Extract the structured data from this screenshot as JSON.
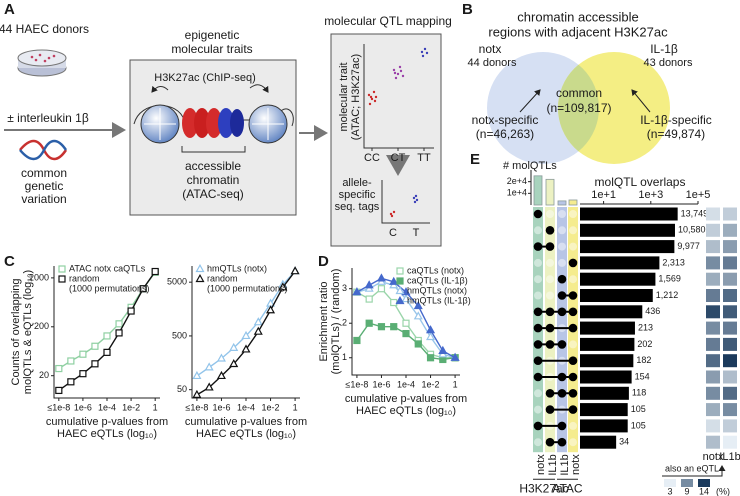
{
  "panel_labels": [
    "A",
    "B",
    "C",
    "D",
    "E"
  ],
  "panel_a": {
    "donors": "44 HAEC donors",
    "treatment": "± interleukin 1β",
    "variation": [
      "common",
      "genetic",
      "variation"
    ],
    "traits_title": [
      "epigenetic",
      "molecular traits"
    ],
    "h3k27ac": "H3K27ac (ChIP-seq)",
    "accessible": [
      "accessible",
      "chromatin",
      "(ATAC-seq)"
    ],
    "qtl_title": "molecular QTL mapping",
    "trait_axis": [
      "molecular trait",
      "(ATAC; H3K27ac)"
    ],
    "genotypes": [
      "CC",
      "CT",
      "TT"
    ],
    "allele_axis": [
      "allele-",
      "specific",
      "seq. tags"
    ],
    "alleles": [
      "C",
      "T"
    ]
  },
  "panel_b": {
    "title": [
      "chromatin accessible",
      "regions with adjacent H3K27ac"
    ],
    "left": "notx",
    "left_donors": "44 donors",
    "right": "IL-1β",
    "right_donors": "43 donors",
    "common": "common",
    "common_n": "(n=109,817)",
    "left_specific": "notx-specific",
    "left_n": "(n=46,263)",
    "right_specific": "IL-1β-specific",
    "right_n": "(n=49,874)"
  },
  "chart_data": [
    {
      "type": "line",
      "ylabel": [
        "Counts of overlapping",
        "molQTLs & eQTLs (log₁₀)"
      ],
      "xlabel": [
        "cumulative p-values from",
        "HAEC eQTLs (log₁₀)"
      ],
      "x": [
        -8,
        -7,
        -6,
        -5,
        -4,
        -3,
        -2,
        -1,
        0
      ],
      "xlim": [
        -8.4,
        0.4
      ],
      "xticks": [
        {
          "value": -8,
          "label": "≤1e-8"
        },
        {
          "value": -6,
          "label": "1e-6"
        },
        {
          "value": -4,
          "label": "1e-4"
        },
        {
          "value": -2,
          "label": "1e-2"
        },
        {
          "value": 0,
          "label": "1"
        }
      ],
      "yscale": "log",
      "ylim": [
        7,
        3500
      ],
      "yticks": [
        20,
        200,
        2000
      ],
      "legend": "upper left",
      "series": [
        {
          "name": "ATAC notx caQTLs",
          "color": "#8fd0a2",
          "marker": "square-open",
          "values": [
            28,
            40,
            55,
            80,
            130,
            230,
            500,
            1200,
            2600
          ]
        },
        {
          "name": "random",
          "note": "(1000 permutations)",
          "color": "#111111",
          "marker": "square-open",
          "values": [
            10,
            15,
            22,
            35,
            60,
            150,
            420,
            1200,
            2700
          ]
        }
      ]
    },
    {
      "type": "line",
      "xlabel": [
        "cumulative p-values from",
        "HAEC eQTLs (log₁₀)"
      ],
      "x": [
        -8,
        -7,
        -6,
        -5,
        -4,
        -3,
        -2,
        -1,
        0
      ],
      "xlim": [
        -8.4,
        0.4
      ],
      "xticks": [
        {
          "value": -8,
          "label": "≤1e-8"
        },
        {
          "value": -6,
          "label": "1e-6"
        },
        {
          "value": -4,
          "label": "1e-4"
        },
        {
          "value": -2,
          "label": "1e-2"
        },
        {
          "value": 0,
          "label": "1"
        }
      ],
      "yscale": "log",
      "ylim": [
        35,
        10000
      ],
      "yticks": [
        50,
        500,
        5000
      ],
      "legend": "upper left",
      "series": [
        {
          "name": "hmQTLs (notx)",
          "color": "#92c4ea",
          "marker": "triangle-open",
          "values": [
            90,
            130,
            190,
            300,
            500,
            900,
            2000,
            4500,
            8000
          ]
        },
        {
          "name": "random",
          "note": "(1000 permutations)",
          "color": "#111111",
          "marker": "triangle-open",
          "values": [
            40,
            55,
            90,
            150,
            280,
            600,
            1500,
            4000,
            8000
          ]
        }
      ]
    },
    {
      "type": "line",
      "ylabel": [
        "Enrichment ratio",
        "(molQTLs) / (random)"
      ],
      "xlabel": [
        "cumulative p-values from",
        "HAEC eQTLs (log₁₀)"
      ],
      "x": [
        -8,
        -7,
        -6,
        -5,
        -4,
        -3,
        -2,
        -1,
        0
      ],
      "xlim": [
        -8.4,
        0.4
      ],
      "xticks": [
        {
          "value": -8,
          "label": "≤1e-8"
        },
        {
          "value": -6,
          "label": "1e-6"
        },
        {
          "value": -4,
          "label": "1e-4"
        },
        {
          "value": -2,
          "label": "1e-2"
        },
        {
          "value": 0,
          "label": "1"
        }
      ],
      "yscale": "linear",
      "ylim": [
        0.5,
        3.6
      ],
      "yticks": [
        1,
        2,
        3
      ],
      "legend": "upper right",
      "series": [
        {
          "name": "caQTLs (notx)",
          "color": "#9ad5aa",
          "marker": "square-open",
          "values": [
            2.9,
            2.7,
            3.0,
            2.6,
            2.0,
            1.5,
            1.1,
            1.0,
            1.0
          ]
        },
        {
          "name": "caQTLs (IL-1β)",
          "color": "#5aae74",
          "marker": "square-filled",
          "values": [
            1.5,
            2.0,
            1.9,
            1.9,
            1.7,
            1.4,
            1.0,
            0.95,
            1.0
          ]
        },
        {
          "name": "hmQTLs (notx)",
          "color": "#98c5ea",
          "marker": "triangle-open",
          "values": [
            2.9,
            3.0,
            3.2,
            3.1,
            2.7,
            2.2,
            1.6,
            1.1,
            1.0
          ]
        },
        {
          "name": "hmQTLs (IL-1β)",
          "color": "#4569cc",
          "marker": "triangle-filled",
          "values": [
            2.9,
            3.1,
            3.3,
            3.2,
            2.9,
            2.5,
            1.8,
            1.2,
            1.0
          ]
        }
      ]
    },
    {
      "type": "upset",
      "set_size_title": "# molQTLs",
      "title": "molQTL overlaps",
      "sets": [
        {
          "name": "notx",
          "color": "#a8d3bd"
        },
        {
          "name": "IL1b",
          "color": "#ecf1c2"
        },
        {
          "name": "IL1b",
          "color": "#b8c5e6"
        },
        {
          "name": "notx",
          "color": "#f5ec8e"
        }
      ],
      "set_groups": [
        {
          "name": "H3K27ac",
          "sets": [
            0,
            1
          ]
        },
        {
          "name": "ATAC",
          "sets": [
            2,
            3
          ]
        }
      ],
      "set_sizes": [
        25000,
        22000,
        3500,
        4300
      ],
      "set_ylim": [
        0,
        30000
      ],
      "set_yticks": [
        {
          "value": 20000,
          "label": "2e+4"
        },
        {
          "value": 10000,
          "label": "1e+4"
        }
      ],
      "memberships": [
        [
          0
        ],
        [
          1
        ],
        [
          0,
          1
        ],
        [
          3
        ],
        [
          2
        ],
        [
          2,
          3
        ],
        [
          0,
          1,
          2,
          3
        ],
        [
          0,
          1,
          3
        ],
        [
          0,
          1,
          2
        ],
        [
          0,
          3
        ],
        [
          0,
          2,
          3
        ],
        [
          1,
          2,
          3
        ],
        [
          1,
          3
        ],
        [
          0,
          2
        ],
        [
          1,
          2
        ]
      ],
      "values": [
        13749,
        10580,
        9977,
        2313,
        1569,
        1212,
        436,
        213,
        202,
        182,
        154,
        118,
        105,
        105,
        34
      ],
      "value_labels": [
        "13,749",
        "10,580",
        "9,977",
        "2,313",
        "1,569",
        "1,212",
        "436",
        "213",
        "202",
        "182",
        "154",
        "118",
        "105",
        "105",
        "34"
      ],
      "xscale": "log",
      "xlim": [
        1,
        100000
      ],
      "xticks": [
        {
          "value": 10,
          "label": "1e+1"
        },
        {
          "value": 1000,
          "label": "1e+3"
        },
        {
          "value": 100000,
          "label": "1e+5"
        }
      ],
      "eqtl_columns": [
        "notx",
        "IL1b"
      ],
      "eqtl_percent": [
        [
          4,
          5
        ],
        [
          5,
          7
        ],
        [
          6,
          8
        ],
        [
          9,
          10
        ],
        [
          7,
          8
        ],
        [
          10,
          11
        ],
        [
          13,
          12
        ],
        [
          9,
          10
        ],
        [
          10,
          12
        ],
        [
          11,
          14
        ],
        [
          8,
          6
        ],
        [
          9,
          11
        ],
        [
          7,
          9
        ],
        [
          4,
          5
        ],
        [
          6,
          3
        ]
      ],
      "eqtl_legend_title": "also an eQTL",
      "eqtl_legend_ticks": [
        3,
        9,
        14
      ],
      "eqtl_legend_unit": "(%)",
      "eqtl_colors": [
        "#e6eef5",
        "#1b3a5c"
      ]
    }
  ]
}
